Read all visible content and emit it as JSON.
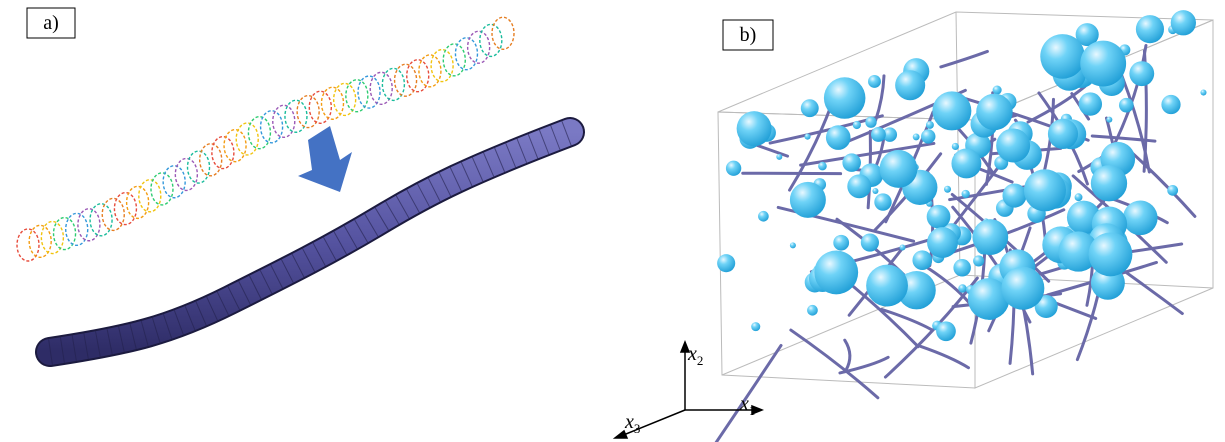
{
  "panels": [
    {
      "label": "a)"
    },
    {
      "label": "b)"
    }
  ],
  "axes": {
    "x2": {
      "symbol": "x",
      "subscript": "2"
    },
    "x1": {
      "symbol": "x",
      "subscript": "1"
    },
    "x3": {
      "symbol": "x",
      "subscript": "3"
    }
  }
}
